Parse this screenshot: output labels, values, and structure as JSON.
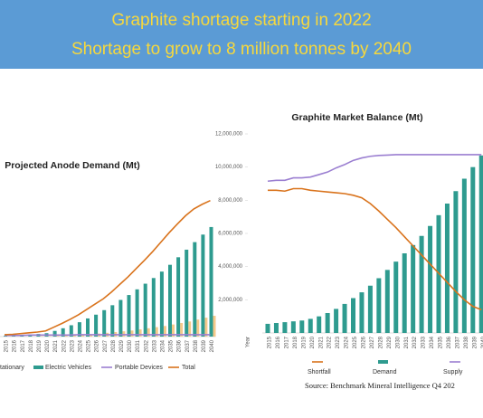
{
  "banner": {
    "lines": [
      "Graphite shortage starting in 2022",
      "Shortage to grow to 8 million tonnes by 2040"
    ]
  },
  "chart_data": [
    {
      "type": "combo",
      "title": "Projected Anode Demand (Mt)",
      "categories": [
        "2015",
        "2016",
        "2017",
        "2018",
        "2019",
        "2020",
        "2021",
        "2022",
        "2023",
        "2024",
        "2025",
        "2026",
        "2027",
        "2028",
        "2029",
        "2030",
        "2031",
        "2032",
        "2033",
        "2034",
        "2035",
        "2036",
        "2037",
        "2038",
        "2039",
        "2040"
      ],
      "series": [
        {
          "name": "tationary",
          "color": "#f5c98a",
          "kind": "bar",
          "values": [
            0,
            0,
            0,
            0,
            0.01,
            0.01,
            0.02,
            0.03,
            0.04,
            0.05,
            0.06,
            0.08,
            0.1,
            0.12,
            0.14,
            0.16,
            0.19,
            0.22,
            0.25,
            0.28,
            0.32,
            0.36,
            0.4,
            0.45,
            0.5,
            0.55
          ]
        },
        {
          "name": "Electric Vehicles",
          "color": "#2e9b8f",
          "kind": "bar",
          "values": [
            0.02,
            0.03,
            0.04,
            0.05,
            0.07,
            0.09,
            0.15,
            0.22,
            0.3,
            0.38,
            0.48,
            0.58,
            0.7,
            0.83,
            0.97,
            1.1,
            1.25,
            1.4,
            1.55,
            1.72,
            1.9,
            2.1,
            2.3,
            2.5,
            2.7,
            2.9
          ]
        },
        {
          "name": "Portable Devices",
          "color": "#9b7fd1",
          "kind": "line",
          "values": [
            0.03,
            0.03,
            0.03,
            0.04,
            0.04,
            0.04,
            0.04,
            0.04,
            0.04,
            0.05,
            0.05,
            0.05,
            0.05,
            0.05,
            0.05,
            0.05,
            0.05,
            0.05,
            0.05,
            0.05,
            0.05,
            0.05,
            0.05,
            0.05,
            0.05,
            0.05
          ]
        },
        {
          "name": "Total",
          "color": "#d9731c",
          "kind": "line",
          "values": [
            0.05,
            0.06,
            0.08,
            0.1,
            0.12,
            0.15,
            0.25,
            0.35,
            0.46,
            0.58,
            0.72,
            0.86,
            1.0,
            1.18,
            1.38,
            1.58,
            1.8,
            2.02,
            2.25,
            2.5,
            2.75,
            2.98,
            3.2,
            3.38,
            3.5,
            3.6
          ]
        }
      ],
      "ylim": [
        0,
        4
      ],
      "grid": false
    },
    {
      "type": "combo",
      "title": "Graphite Market Balance (Mt)",
      "categories": [
        "2015",
        "2016",
        "2017",
        "2018",
        "2019",
        "2020",
        "2021",
        "2022",
        "2023",
        "2024",
        "2025",
        "2026",
        "2027",
        "2028",
        "2029",
        "2030",
        "2031",
        "2032",
        "2033",
        "2034",
        "2035",
        "2036",
        "2037",
        "2038",
        "2039",
        "2040"
      ],
      "x_label": "Year",
      "series": [
        {
          "name": "Shortfall",
          "color": "#d9731c",
          "kind": "line",
          "values": [
            8600000,
            8600000,
            8550000,
            8700000,
            8700000,
            8600000,
            8550000,
            8500000,
            8450000,
            8400000,
            8300000,
            8150000,
            7800000,
            7350000,
            6850000,
            6350000,
            5800000,
            5250000,
            4700000,
            4150000,
            3600000,
            3050000,
            2500000,
            2000000,
            1600000,
            1400000
          ]
        },
        {
          "name": "Demand",
          "color": "#2e9b8f",
          "kind": "bar",
          "values": [
            550000,
            600000,
            650000,
            700000,
            750000,
            850000,
            1000000,
            1200000,
            1450000,
            1750000,
            2100000,
            2450000,
            2850000,
            3300000,
            3800000,
            4300000,
            4800000,
            5300000,
            5850000,
            6450000,
            7100000,
            7800000,
            8550000,
            9300000,
            10000000,
            10700000
          ]
        },
        {
          "name": "Supply",
          "color": "#9b7fd1",
          "kind": "line",
          "values": [
            9150000,
            9200000,
            9200000,
            9350000,
            9350000,
            9400000,
            9550000,
            9700000,
            9950000,
            10150000,
            10400000,
            10550000,
            10650000,
            10700000,
            10720000,
            10750000,
            10750000,
            10750000,
            10750000,
            10750000,
            10750000,
            10750000,
            10750000,
            10750000,
            10750000,
            10750000
          ]
        }
      ],
      "ylim": [
        0,
        12000000
      ],
      "yticks": [
        {
          "value": 2000000,
          "label": "2,000,000"
        },
        {
          "value": 4000000,
          "label": "4,000,000"
        },
        {
          "value": 6000000,
          "label": "6,000,000"
        },
        {
          "value": 8000000,
          "label": "8,000,000"
        },
        {
          "value": 10000000,
          "label": "10,000,000"
        },
        {
          "value": 12000000,
          "label": "12,000,000"
        }
      ],
      "grid": false,
      "source": "Source:  Benchmark Mineral Intelligence Q4 202"
    }
  ]
}
